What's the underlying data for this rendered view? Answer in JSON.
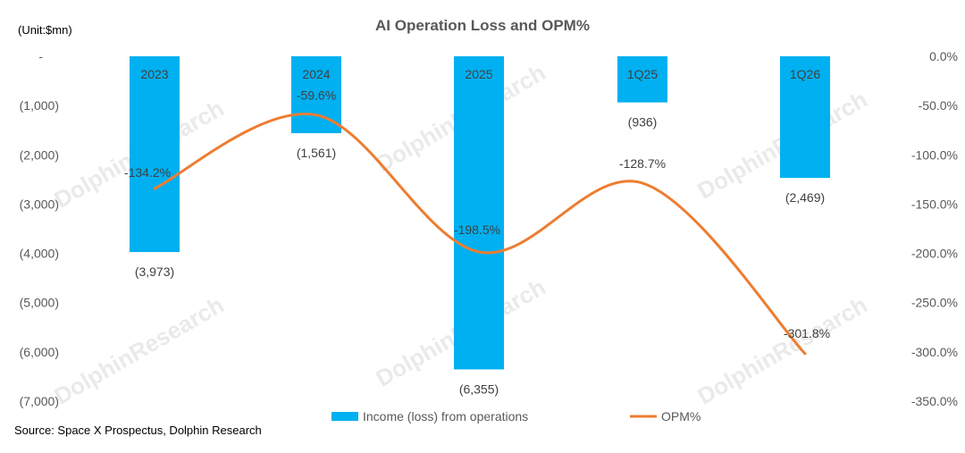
{
  "chart_data": {
    "type": "bar+line",
    "title": "AI Operation Loss and OPM%",
    "unit_label": "(Unit:$mn)",
    "source": "Source: Space X Prospectus, Dolphin Research",
    "watermark": "DolphinResearch",
    "categories": [
      "2023",
      "2024",
      "2025",
      "1Q25",
      "1Q26"
    ],
    "series": [
      {
        "name": "Income (loss) from operations",
        "type": "bar",
        "axis": "left",
        "color": "#00b0f0",
        "values": [
          -3973,
          -1561,
          -6355,
          -936,
          -2469
        ],
        "labels": [
          "(3,973)",
          "(1,561)",
          "(6,355)",
          "(936)",
          "(2,469)"
        ]
      },
      {
        "name": "OPM%",
        "type": "line",
        "axis": "right",
        "color": "#ed7d31",
        "values": [
          -134.2,
          -59.6,
          -198.5,
          -128.7,
          -301.8
        ],
        "labels": [
          "-134.2%",
          "-59.6%",
          "-198.5%",
          "-128.7%",
          "-301.8%"
        ]
      }
    ],
    "left_axis": {
      "ylim": [
        -7000,
        0
      ],
      "tick_values": [
        0,
        -1000,
        -2000,
        -3000,
        -4000,
        -5000,
        -6000,
        -7000
      ],
      "tick_labels": [
        "-",
        "(1,000)",
        "(2,000)",
        "(3,000)",
        "(4,000)",
        "(5,000)",
        "(6,000)",
        "(7,000)"
      ]
    },
    "right_axis": {
      "ylim": [
        -350,
        0
      ],
      "tick_values": [
        0,
        -50,
        -100,
        -150,
        -200,
        -250,
        -300,
        -350
      ],
      "tick_labels": [
        "0.0%",
        "-50.0%",
        "-100.0%",
        "-150.0%",
        "-200.0%",
        "-250.0%",
        "-300.0%",
        "-350.0%"
      ]
    },
    "grid": false,
    "legend_position": "bottom"
  }
}
